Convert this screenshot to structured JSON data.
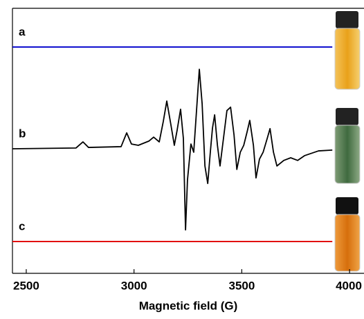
{
  "chart_data": {
    "type": "line",
    "x_label": "Magnetic field (G)",
    "xlim": [
      2436,
      4067
    ],
    "xticks": [
      2500,
      3000,
      3500,
      4000
    ],
    "ylim": [
      0,
      100
    ],
    "series": [
      {
        "name": "a",
        "color": "#0000cc",
        "x": [
          2436,
          3920
        ],
        "values": [
          85.4,
          85.4
        ]
      },
      {
        "name": "b",
        "color": "#000000",
        "x": [
          2436,
          2731,
          2763,
          2789,
          2940,
          2966,
          2988,
          3020,
          3069,
          3091,
          3117,
          3136,
          3152,
          3171,
          3187,
          3200,
          3216,
          3229,
          3239,
          3248,
          3264,
          3277,
          3290,
          3303,
          3316,
          3329,
          3342,
          3354,
          3364,
          3374,
          3387,
          3399,
          3415,
          3431,
          3448,
          3464,
          3477,
          3493,
          3509,
          3525,
          3537,
          3554,
          3566,
          3582,
          3599,
          3618,
          3631,
          3647,
          3663,
          3695,
          3727,
          3759,
          3791,
          3856,
          3920
        ],
        "values": [
          47.0,
          47.3,
          49.6,
          47.5,
          47.8,
          53.0,
          48.8,
          48.3,
          49.9,
          51.4,
          49.6,
          57.4,
          65.0,
          56.1,
          48.3,
          54.0,
          61.9,
          50.9,
          16.4,
          35.2,
          48.8,
          45.7,
          61.4,
          77.0,
          64.0,
          40.5,
          33.9,
          45.7,
          54.8,
          59.8,
          48.3,
          40.5,
          50.9,
          61.4,
          62.7,
          52.2,
          39.2,
          45.7,
          48.3,
          53.5,
          57.7,
          48.3,
          36.0,
          43.1,
          45.7,
          50.9,
          54.6,
          45.7,
          40.5,
          42.6,
          43.6,
          42.6,
          44.4,
          46.2,
          46.5
        ]
      },
      {
        "name": "c",
        "color": "#e00000",
        "x": [
          2436,
          3920
        ],
        "values": [
          12.0,
          12.0
        ]
      }
    ]
  }
}
